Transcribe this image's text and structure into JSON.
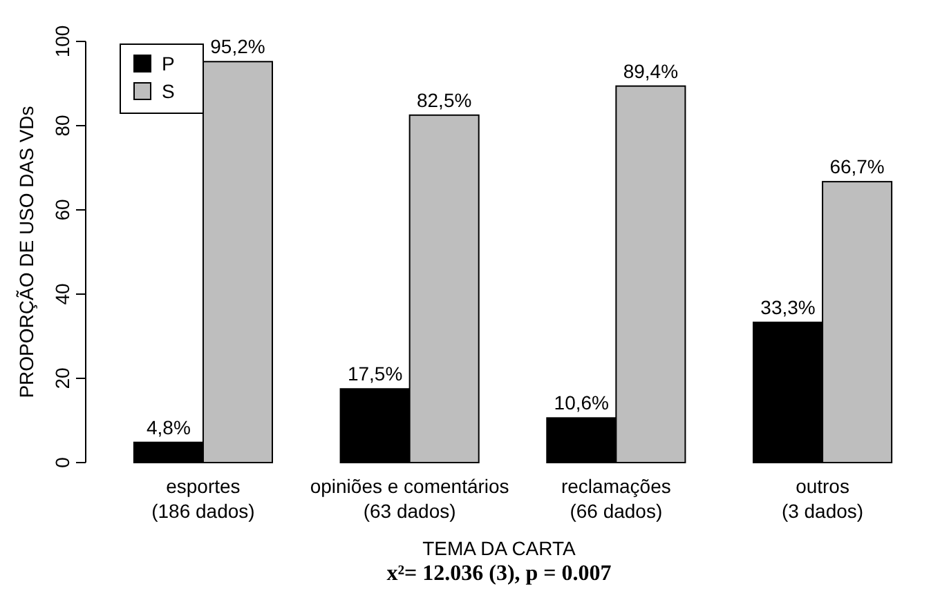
{
  "chart_data": {
    "type": "bar",
    "xlabel": "TEMA DA CARTA",
    "ylabel": "PROPORÇÃO DE USO DAS VDs",
    "categories": [
      "esportes\n(186 dados)",
      "opiniões e comentários\n(63 dados)",
      "reclamações\n(66 dados)",
      "outros\n(3 dados)"
    ],
    "series": [
      {
        "name": "P",
        "color": "#000000",
        "values": [
          4.8,
          17.5,
          10.6,
          33.3
        ],
        "value_labels": [
          "4,8%",
          "17,5%",
          "10,6%",
          "33,3%"
        ]
      },
      {
        "name": "S",
        "color": "#bebebe",
        "values": [
          95.2,
          82.5,
          89.4,
          66.7
        ],
        "value_labels": [
          "95,2%",
          "82,5%",
          "89,4%",
          "66,7%"
        ]
      }
    ],
    "ylim": [
      0,
      100
    ],
    "yticks": [
      0,
      20,
      40,
      60,
      80,
      100
    ],
    "grid": false,
    "legend": "top left",
    "annotations": [
      "x²= 12.036 (3), p = 0.007"
    ]
  }
}
